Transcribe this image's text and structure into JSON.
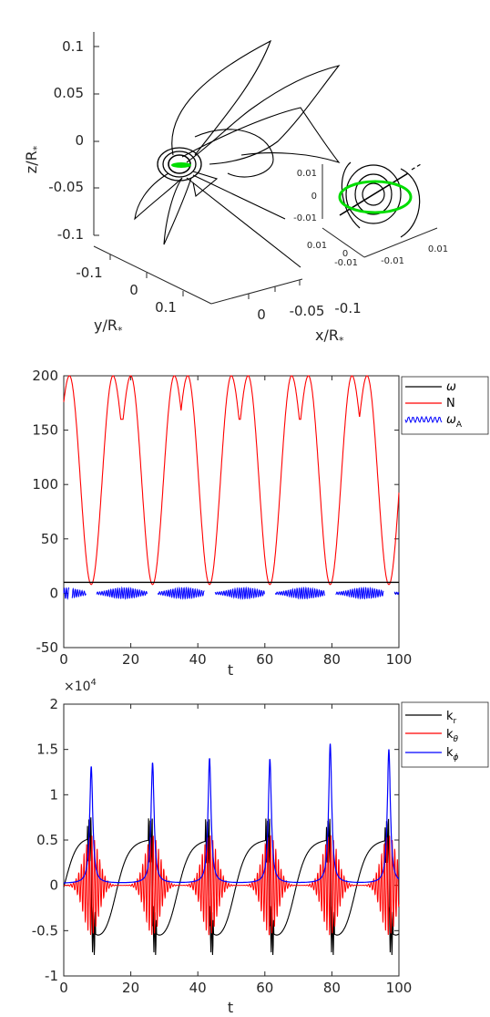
{
  "chart_data": [
    {
      "type": "line",
      "projection": "3d",
      "xlabel": "x/R",
      "ylabel": "y/R",
      "zlabel": "z/R",
      "label_subscript": "*",
      "z_ticks": [
        "0.1",
        "0.05",
        "0",
        "-0.05",
        "-0.1"
      ],
      "y_ticks": [
        "-0.1",
        "0",
        "0.1"
      ],
      "x_ticks": [
        "0",
        "-0.05",
        "-0.1"
      ],
      "series": [
        {
          "color": "#000000",
          "description_values": "ray trajectory"
        },
        {
          "color": "#00dd00",
          "shape": "ellipse"
        }
      ],
      "inset": {
        "z_ticks": [
          "0.01",
          "0",
          "-0.01"
        ],
        "y_ticks": [
          "0.01",
          "0"
        ],
        "y_ticks_lower": [
          "-0.01"
        ],
        "x_ticks": [
          "0.01"
        ],
        "x_ticks_lower": [
          "-0.01"
        ]
      }
    },
    {
      "type": "line",
      "xlabel": "t",
      "ylim": [
        -50,
        200
      ],
      "xlim": [
        0,
        100
      ],
      "x_ticks": [
        "0",
        "20",
        "40",
        "60",
        "80",
        "100"
      ],
      "y_ticks": [
        "200",
        "150",
        "100",
        "50",
        "0",
        "-50"
      ],
      "legend_position": "top-right",
      "series": [
        {
          "name": "ω",
          "color": "#000000",
          "constant": 10
        },
        {
          "name": "N",
          "color": "#ff0000",
          "min": 8,
          "max": 200,
          "minima_t": [
            8.2,
            26.5,
            43.5,
            61.5,
            79.5,
            97
          ],
          "double_peaks_t": [
            [
              2.5,
              14.5
            ],
            [
              19.5,
              33.5
            ],
            [
              37.5,
              51.5
            ],
            [
              55.5,
              69.5
            ],
            [
              73.5,
              87.5
            ],
            [
              91.5,
              100
            ]
          ]
        },
        {
          "name": "ω",
          "name_subscript": "A",
          "color": "#0000ff",
          "amplitude": 5,
          "gaps_t": [
            8.2,
            26.5,
            43.5,
            61.5,
            79.5,
            97
          ]
        }
      ]
    },
    {
      "type": "line",
      "xlabel": "t",
      "ylim": [
        -1,
        2
      ],
      "y_multiplier": "×10",
      "y_multiplier_exp": "4",
      "xlim": [
        0,
        100
      ],
      "x_ticks": [
        "0",
        "20",
        "40",
        "60",
        "80",
        "100"
      ],
      "y_ticks": [
        "2",
        "1.5",
        "1",
        "0.5",
        "0",
        "-0.5",
        "-1"
      ],
      "legend_position": "top-right",
      "series": [
        {
          "name": "k",
          "name_subscript": "r",
          "color": "#000000",
          "min": -0.65,
          "max": 0.55
        },
        {
          "name": "k",
          "name_subscript": "θ",
          "color": "#ff0000",
          "min": -0.55,
          "max": 0.62
        },
        {
          "name": "k",
          "name_subscript": "ϕ",
          "color": "#0000ff",
          "peaks": [
            {
              "t": 8.2,
              "v": 1.29
            },
            {
              "t": 26.5,
              "v": 1.33
            },
            {
              "t": 43.5,
              "v": 1.38
            },
            {
              "t": 61.5,
              "v": 1.37
            },
            {
              "t": 79.5,
              "v": 1.54
            },
            {
              "t": 97,
              "v": 1.48
            }
          ]
        }
      ]
    }
  ]
}
